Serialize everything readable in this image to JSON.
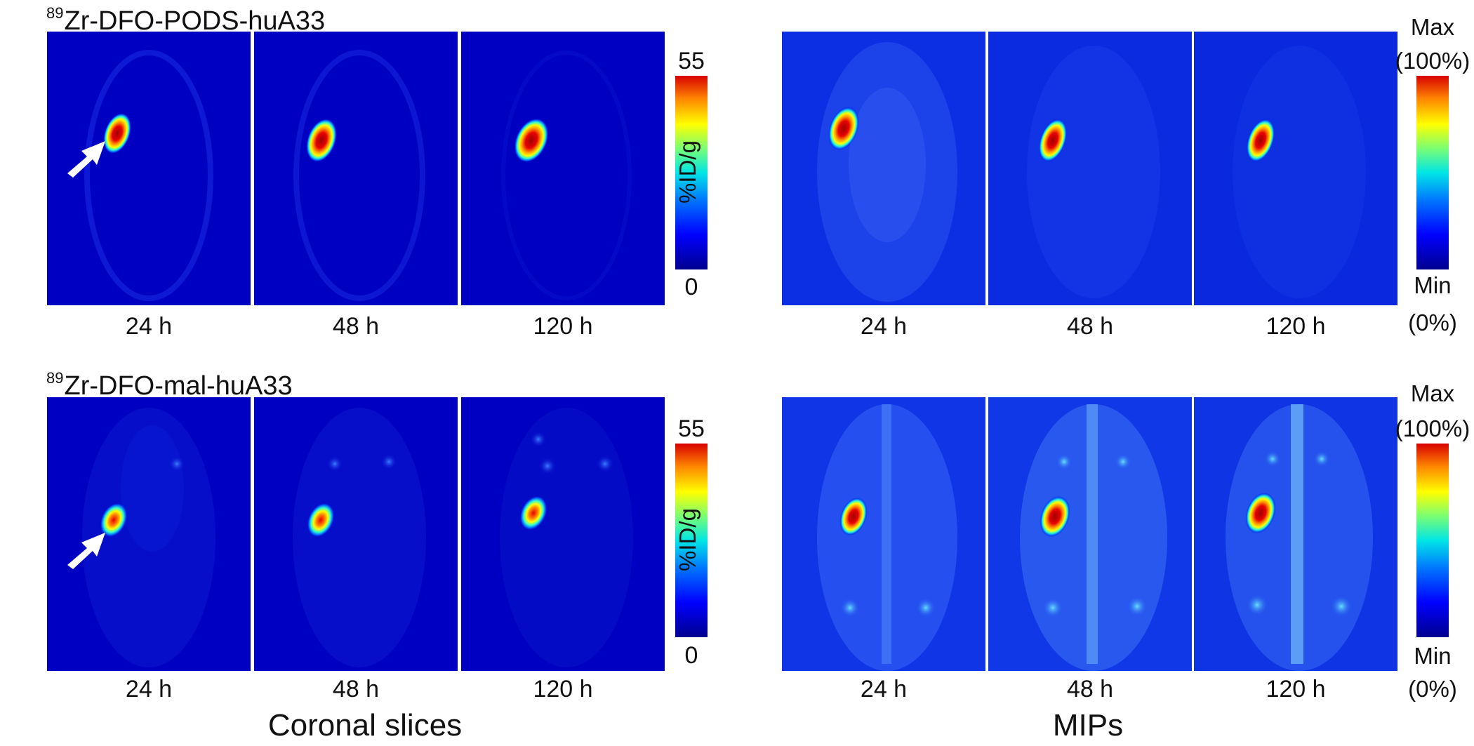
{
  "rows": [
    {
      "radiotracer": "Zr-DFO-PODS-huA33",
      "isotope_mass": "89"
    },
    {
      "radiotracer": "Zr-DFO-mal-huA33",
      "isotope_mass": "89"
    }
  ],
  "timepoints": [
    "24 h",
    "48 h",
    "120 h"
  ],
  "slice_scale": {
    "max": "55",
    "min": "0",
    "unit": "%ID/g"
  },
  "mip_scale": {
    "max_label": "Max",
    "max_pct": "(100%)",
    "min_label": "Min",
    "min_pct": "(0%)"
  },
  "columns": {
    "left_caption": "Coronal slices",
    "right_caption": "MIPs"
  },
  "colors": {
    "background": "#0000c8",
    "hot": "#d80000",
    "mip_bg": "#0a2ee6"
  },
  "icons": {
    "tumor_marker": "arrow-icon"
  }
}
